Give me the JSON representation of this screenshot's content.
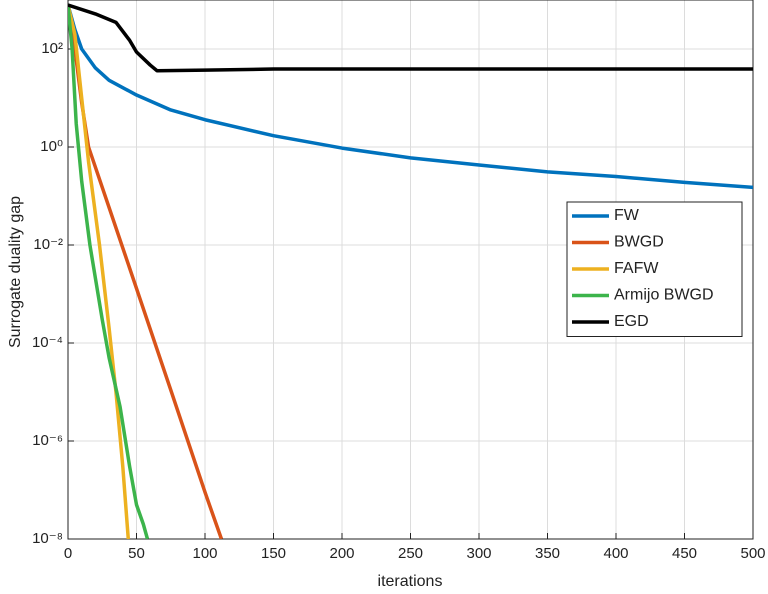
{
  "chart_data": {
    "type": "line",
    "x_label": "iterations",
    "y_label": "Surrogate duality gap",
    "log_y": true,
    "grid": true,
    "legend_position": "right",
    "xlim": [
      0,
      500
    ],
    "xticks": [
      0,
      50,
      100,
      150,
      200,
      250,
      300,
      350,
      400,
      450,
      500
    ],
    "ylim": [
      1e-08,
      1000
    ],
    "yticks": [
      {
        "value": 1e-08,
        "label": "10⁻⁸"
      },
      {
        "value": 1e-06,
        "label": "10⁻⁶"
      },
      {
        "value": 0.0001,
        "label": "10⁻⁴"
      },
      {
        "value": 0.01,
        "label": "10⁻²"
      },
      {
        "value": 1,
        "label": "10⁰"
      },
      {
        "value": 100,
        "label": "10²"
      }
    ],
    "series": [
      {
        "name": "FW",
        "color": "#0072bd",
        "x": [
          0,
          5,
          10,
          20,
          30,
          50,
          75,
          100,
          150,
          200,
          250,
          300,
          350,
          400,
          450,
          500
        ],
        "values": [
          790,
          250,
          100,
          41,
          23,
          11.5,
          5.7,
          3.6,
          1.7,
          0.95,
          0.6,
          0.43,
          0.31,
          0.25,
          0.19,
          0.15
        ]
      },
      {
        "name": "BWGD",
        "color": "#d95319",
        "x": [
          0,
          5,
          10,
          15,
          30,
          50,
          75,
          100,
          112
        ],
        "values": [
          790,
          100,
          8,
          1,
          0.058,
          0.0013,
          1.1e-05,
          9e-08,
          1e-08
        ]
      },
      {
        "name": "FAFW",
        "color": "#edb120",
        "x": [
          0,
          5,
          10,
          15,
          23,
          30,
          35,
          40,
          44
        ],
        "values": [
          790,
          200,
          10,
          0.5,
          0.01,
          0.0002,
          1e-05,
          3e-07,
          1e-08
        ]
      },
      {
        "name": "Armijo BWGD",
        "color": "#3cb44b",
        "x": [
          0,
          3,
          6,
          10,
          16,
          25,
          30,
          38,
          45,
          50,
          55,
          58
        ],
        "values": [
          790,
          100,
          3,
          0.2,
          0.01,
          0.0003,
          5e-05,
          5e-06,
          3e-07,
          5e-08,
          2e-08,
          1e-08
        ]
      },
      {
        "name": "EGD",
        "color": "#000000",
        "x": [
          0,
          20,
          35,
          45,
          50,
          60,
          65,
          100,
          150,
          500
        ],
        "values": [
          790,
          520,
          350,
          150,
          87,
          47,
          36,
          37,
          39,
          39
        ]
      }
    ]
  }
}
